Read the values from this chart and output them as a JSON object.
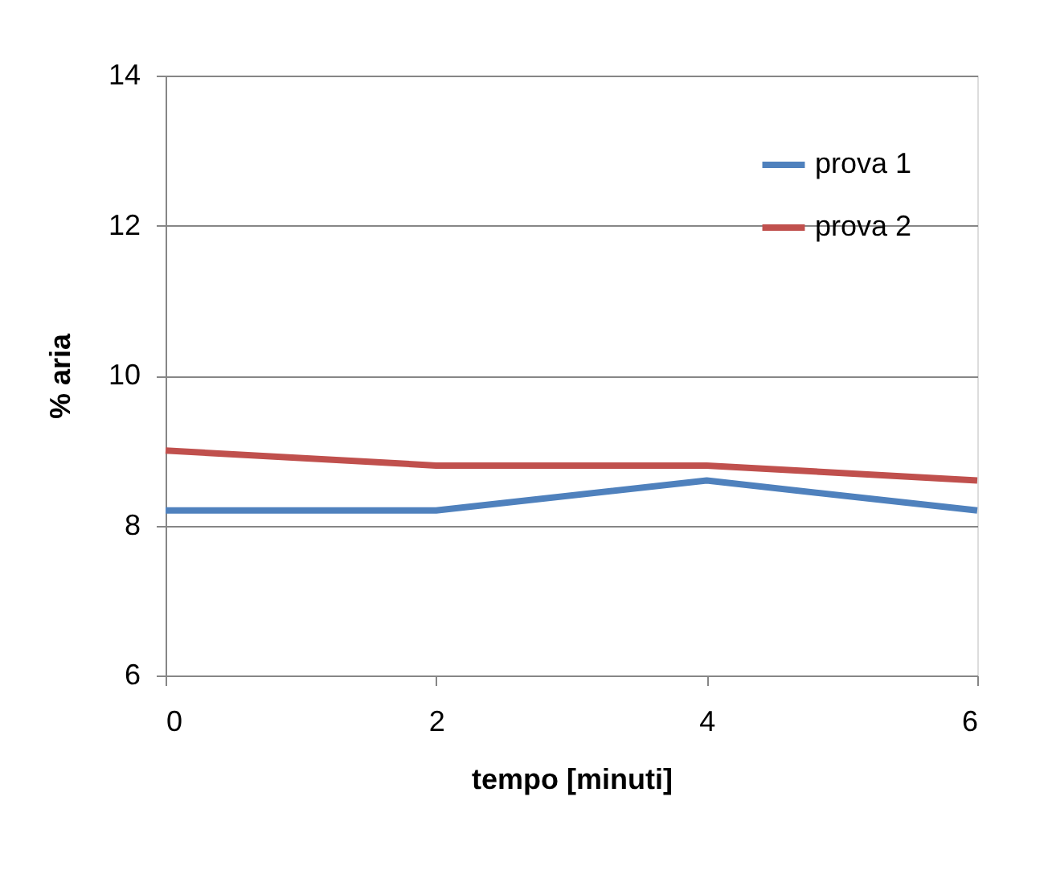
{
  "chart_data": {
    "type": "line",
    "xlabel": "tempo [minuti]",
    "ylabel": "% aria",
    "x": [
      0,
      2,
      4,
      6
    ],
    "series": [
      {
        "name": "prova 1",
        "color": "#4f81bd",
        "values": [
          8.2,
          8.2,
          8.6,
          8.2
        ]
      },
      {
        "name": "prova 2",
        "color": "#c0504d",
        "values": [
          9.0,
          8.8,
          8.8,
          8.6
        ]
      }
    ],
    "xlim": [
      0,
      6
    ],
    "xticks": [
      0,
      2,
      4,
      6
    ],
    "ylim": [
      6,
      14
    ],
    "yticks": [
      6,
      8,
      10,
      12,
      14
    ],
    "grid": "y",
    "legend": "top right",
    "marker": "none",
    "line_style": "solid"
  }
}
